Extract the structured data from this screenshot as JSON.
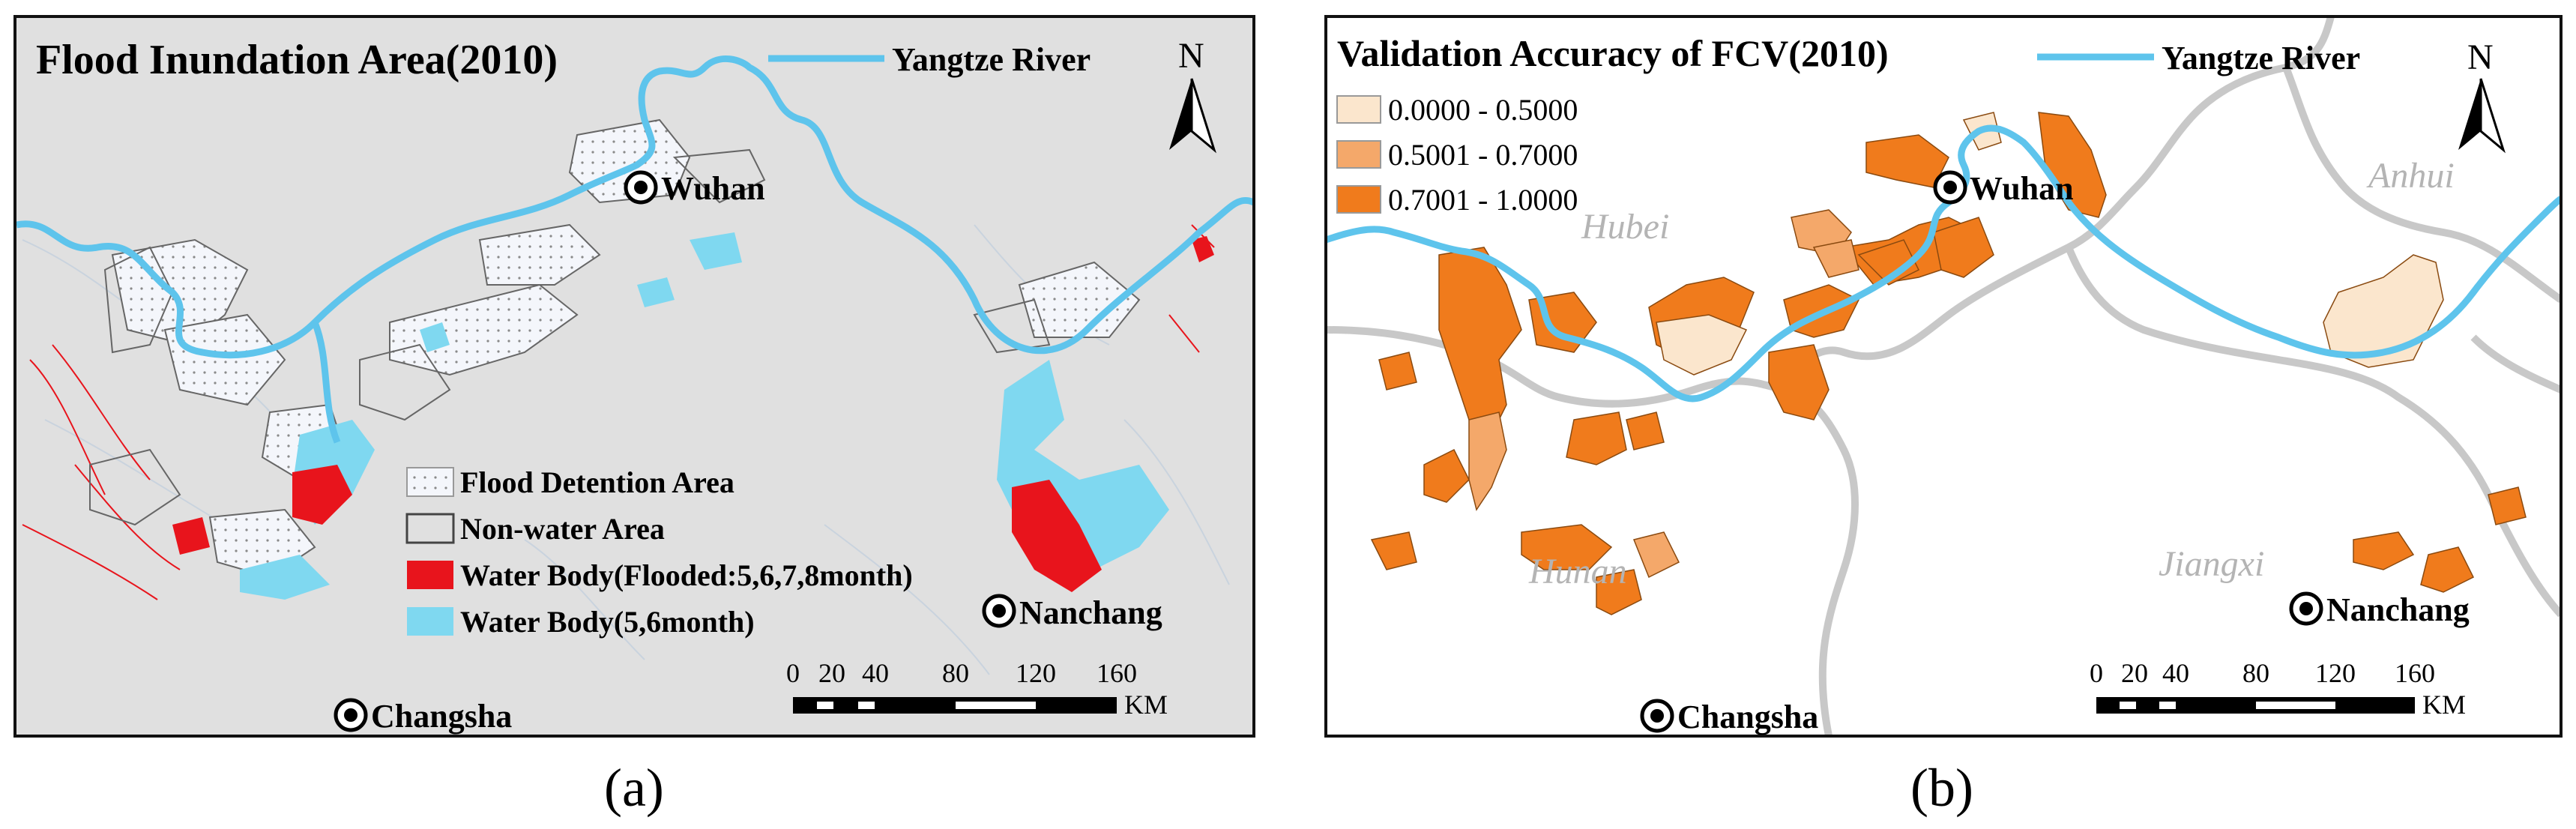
{
  "panels": {
    "a": {
      "title": "Flood Inundation Area(2010)",
      "river_legend": "Yangtze River",
      "north_label": "N",
      "cities": [
        "Wuhan",
        "Nanchang",
        "Changsha"
      ],
      "legend": [
        {
          "label": "Flood Detention Area",
          "swatch": "dotted"
        },
        {
          "label": "Non-water Area",
          "swatch": "outline"
        },
        {
          "label": "Water Body(Flooded:5,6,7,8month)",
          "swatch": "#e8141c"
        },
        {
          "label": "Water Body(5,6month)",
          "swatch": "#7fd8f0"
        }
      ],
      "scale_ticks": [
        "0",
        "20",
        "40",
        "80",
        "120",
        "160"
      ],
      "scale_unit": "KM",
      "caption": "(a)"
    },
    "b": {
      "title": "Validation Accuracy of FCV(2010)",
      "river_legend": "Yangtze River",
      "north_label": "N",
      "cities": [
        "Wuhan",
        "Nanchang",
        "Changsha"
      ],
      "provinces": [
        "Hubei",
        "Anhui",
        "Hunan",
        "Jiangxi"
      ],
      "legend": [
        {
          "label": "0.0000 - 0.5000",
          "color": "#fbe6cd"
        },
        {
          "label": "0.5001 - 0.7000",
          "color": "#f4a86a"
        },
        {
          "label": "0.7001 - 1.0000",
          "color": "#f07b1c"
        }
      ],
      "scale_ticks": [
        "0",
        "20",
        "40",
        "80",
        "120",
        "160"
      ],
      "scale_unit": "KM",
      "caption": "(b)"
    }
  },
  "colors": {
    "river": "#5ec4ec",
    "map_a_background": "#e0e0e0",
    "flooded_water": "#e8141c",
    "permanent_water": "#7fd8f0",
    "province_border": "#c8c8c8"
  }
}
